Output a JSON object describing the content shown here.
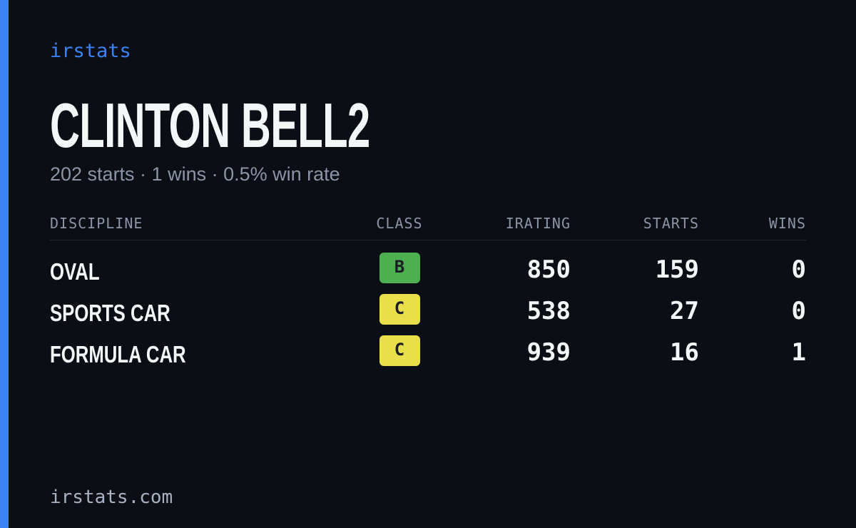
{
  "brand": "irstats",
  "profile": {
    "name": "CLINTON BELL2",
    "summary": "202 starts · 1 wins · 0.5% win rate"
  },
  "table": {
    "headers": [
      "DISCIPLINE",
      "CLASS",
      "IRATING",
      "STARTS",
      "WINS"
    ],
    "rows": [
      {
        "discipline": "OVAL",
        "class": "B",
        "class_color": "#4caf50",
        "irating": 850,
        "starts": 159,
        "wins": 0
      },
      {
        "discipline": "SPORTS CAR",
        "class": "C",
        "class_color": "#e8df4a",
        "irating": 538,
        "starts": 27,
        "wins": 0
      },
      {
        "discipline": "FORMULA CAR",
        "class": "C",
        "class_color": "#e8df4a",
        "irating": 939,
        "starts": 16,
        "wins": 1
      }
    ]
  },
  "footer": "irstats.com"
}
